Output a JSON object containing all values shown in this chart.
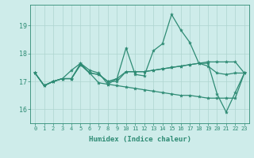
{
  "xlabel": "Humidex (Indice chaleur)",
  "x": [
    0,
    1,
    2,
    3,
    4,
    5,
    6,
    7,
    8,
    9,
    10,
    11,
    12,
    13,
    14,
    15,
    16,
    17,
    18,
    19,
    20,
    21,
    22,
    23
  ],
  "line1": [
    17.3,
    16.85,
    17.0,
    17.1,
    17.1,
    17.65,
    17.4,
    17.3,
    16.9,
    17.1,
    18.2,
    17.25,
    17.2,
    18.1,
    18.35,
    19.4,
    18.85,
    18.4,
    17.65,
    17.65,
    16.55,
    15.9,
    16.6,
    17.3
  ],
  "line2": [
    17.3,
    16.85,
    17.0,
    17.1,
    17.4,
    17.65,
    17.3,
    17.25,
    17.0,
    17.1,
    17.35,
    17.35,
    17.35,
    17.4,
    17.45,
    17.5,
    17.55,
    17.6,
    17.65,
    17.7,
    17.7,
    17.7,
    17.7,
    17.3
  ],
  "line3": [
    17.3,
    16.85,
    17.0,
    17.1,
    17.1,
    17.6,
    17.3,
    17.25,
    17.0,
    17.0,
    17.35,
    17.35,
    17.35,
    17.4,
    17.45,
    17.5,
    17.55,
    17.6,
    17.65,
    17.55,
    17.3,
    17.25,
    17.3,
    17.3
  ],
  "line4": [
    17.3,
    16.85,
    17.0,
    17.1,
    17.1,
    17.6,
    17.3,
    16.95,
    16.9,
    16.85,
    16.8,
    16.75,
    16.7,
    16.65,
    16.6,
    16.55,
    16.5,
    16.5,
    16.45,
    16.4,
    16.4,
    16.4,
    16.4,
    17.3
  ],
  "line_color": "#2e8b74",
  "bg_color": "#ceecea",
  "grid_color": "#aed4d0",
  "ylim": [
    15.5,
    19.75
  ],
  "yticks": [
    16,
    17,
    18,
    19
  ],
  "markersize": 3,
  "linewidth": 0.9
}
